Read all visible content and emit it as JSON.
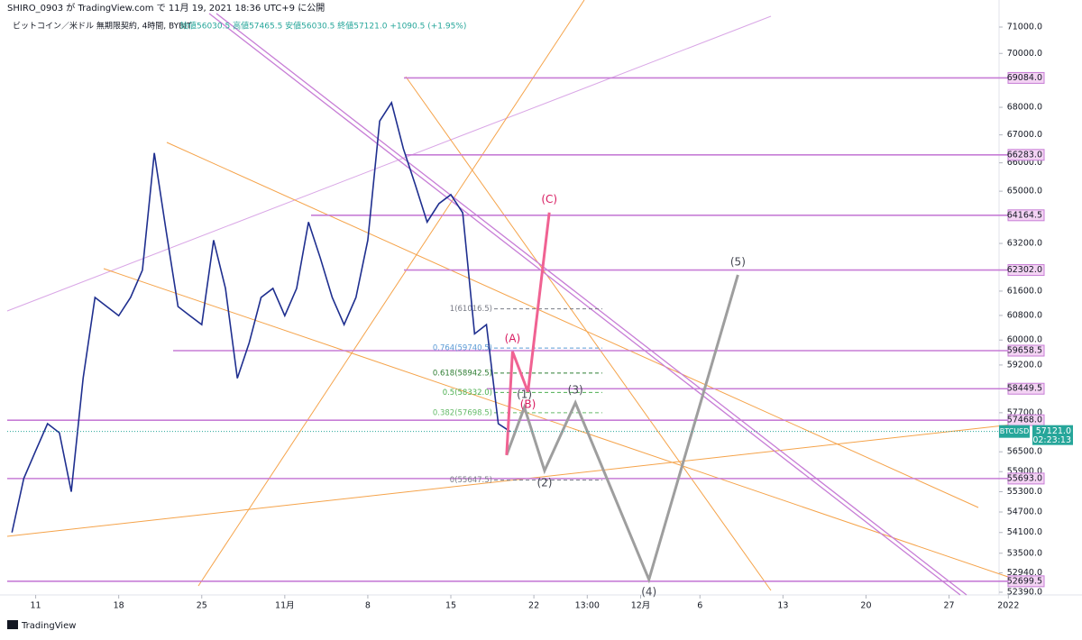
{
  "header": {
    "published": "SHIRO_0903 が TradingView.com で 11月 19, 2021 18:36 UTC+9 に公開",
    "symbol": "ビットコイン／米ドル 無期限契約, 4時間, BYBIT",
    "ohlc": "始値56030.5 高値57465.5 安値56030.5 終値57121.0 +1090.5 (+1.95%)"
  },
  "footer": {
    "brand": "TradingView"
  },
  "chart_data": {
    "type": "line",
    "log_scale": true,
    "color": "#1f2f8f",
    "x": [
      -2,
      -1,
      0,
      1,
      2,
      3,
      4,
      5,
      6,
      7,
      8,
      9,
      10,
      11,
      12,
      13,
      14,
      15,
      16,
      17,
      18,
      19,
      20,
      21,
      22,
      23,
      24,
      25,
      26,
      27,
      28,
      29,
      30,
      31,
      32,
      33,
      34,
      35,
      36,
      37,
      38,
      39,
      40
    ],
    "values": [
      54100,
      55700,
      56530,
      57360,
      57080,
      55300,
      58780,
      61390,
      61090,
      60790,
      61390,
      62300,
      66350,
      63620,
      61090,
      60790,
      60500,
      63310,
      61690,
      58780,
      59910,
      61390,
      61690,
      60790,
      61690,
      63930,
      62700,
      61390,
      60500,
      61390,
      63310,
      67500,
      68170,
      66500,
      65230,
      63930,
      64570,
      64880,
      64250,
      60200,
      60500,
      57360,
      57121
    ],
    "xlim": [
      -2.4,
      83.8
    ],
    "ylim": [
      52390,
      71000
    ],
    "xticks": [
      {
        "value": 0,
        "label": "11"
      },
      {
        "value": 7,
        "label": "18"
      },
      {
        "value": 14,
        "label": "25"
      },
      {
        "value": 21,
        "label": "11月"
      },
      {
        "value": 28,
        "label": "8"
      },
      {
        "value": 35,
        "label": "15"
      },
      {
        "value": 42,
        "label": "22"
      },
      {
        "value": 46.5,
        "label": "13:00"
      },
      {
        "value": 51,
        "label": "12月"
      },
      {
        "value": 56,
        "label": "6"
      },
      {
        "value": 63,
        "label": "13"
      },
      {
        "value": 70,
        "label": "20"
      },
      {
        "value": 77,
        "label": "27"
      },
      {
        "value": 82,
        "label": "2022"
      }
    ],
    "yticks": [
      {
        "value": 71000,
        "label": "71000.0"
      },
      {
        "value": 70000,
        "label": "70000.0"
      },
      {
        "value": 68000,
        "label": "68000.0"
      },
      {
        "value": 67000,
        "label": "67000.0"
      },
      {
        "value": 66000,
        "label": "66000.0"
      },
      {
        "value": 65000,
        "label": "65000.0"
      },
      {
        "value": 63200,
        "label": "63200.0"
      },
      {
        "value": 61600,
        "label": "61600.0"
      },
      {
        "value": 60800,
        "label": "60800.0"
      },
      {
        "value": 60000,
        "label": "60000.0"
      },
      {
        "value": 59200,
        "label": "59200.0"
      },
      {
        "value": 57700,
        "label": "57700.0"
      },
      {
        "value": 56500,
        "label": "56500.0"
      },
      {
        "value": 55900,
        "label": "55900.0"
      },
      {
        "value": 55300,
        "label": "55300.0"
      },
      {
        "value": 54700,
        "label": "54700.0"
      },
      {
        "value": 54100,
        "label": "54100.0"
      },
      {
        "value": 53500,
        "label": "53500.0"
      },
      {
        "value": 52940,
        "label": "52940.0"
      },
      {
        "value": 52390,
        "label": "52390.0"
      }
    ],
    "levels": [
      {
        "value": 69084,
        "label": "69084.0"
      },
      {
        "value": 66283,
        "label": "66283.0"
      },
      {
        "value": 64164.5,
        "label": "64164.5"
      },
      {
        "value": 62302,
        "label": "62302.0"
      },
      {
        "value": 59658.5,
        "label": "59658.5"
      },
      {
        "value": 58449.5,
        "label": "58449.5"
      },
      {
        "value": 57468,
        "label": "57468.0"
      },
      {
        "value": 55693,
        "label": "55693.0"
      },
      {
        "value": 52699.5,
        "label": "52699.5"
      }
    ],
    "level_color": "#c77dd6",
    "last_price": {
      "symbol": "BTCUSD",
      "value": 57121,
      "label": "57121.0",
      "countdown": "02:23:13",
      "color": "#26a69a"
    },
    "fib": [
      {
        "value": 61016.5,
        "label": "1(61016.5)",
        "color": "#787b86"
      },
      {
        "value": 59740.5,
        "label": "0.764(59740.5)",
        "color": "#5b9bd5"
      },
      {
        "value": 58942.5,
        "label": "0.618(58942.5)",
        "color": "#2e7d32"
      },
      {
        "value": 58332,
        "label": "0.5(58332.0)",
        "color": "#4caf50"
      },
      {
        "value": 57698.5,
        "label": "0.382(57698.5)",
        "color": "#66bb6a"
      },
      {
        "value": 55647.5,
        "label": "0(55647.5)",
        "color": "#787b86"
      }
    ],
    "waves": [
      {
        "color": "#9e9e9e",
        "x": [
          39.7,
          41.2,
          42.9,
          45.5,
          51.7,
          59.2
        ],
        "values": [
          56400,
          57870,
          55930,
          58010,
          52750,
          62140
        ],
        "labels": [
          null,
          "(1)",
          "(2)",
          "(3)",
          "(4)",
          "(5)"
        ]
      },
      {
        "color": "#f06292",
        "x": [
          39.7,
          40.2,
          41.5,
          43.3
        ],
        "values": [
          56400,
          59630,
          58350,
          64260
        ],
        "labels": [
          null,
          "(A)",
          "(B)",
          "(C)"
        ]
      }
    ]
  }
}
